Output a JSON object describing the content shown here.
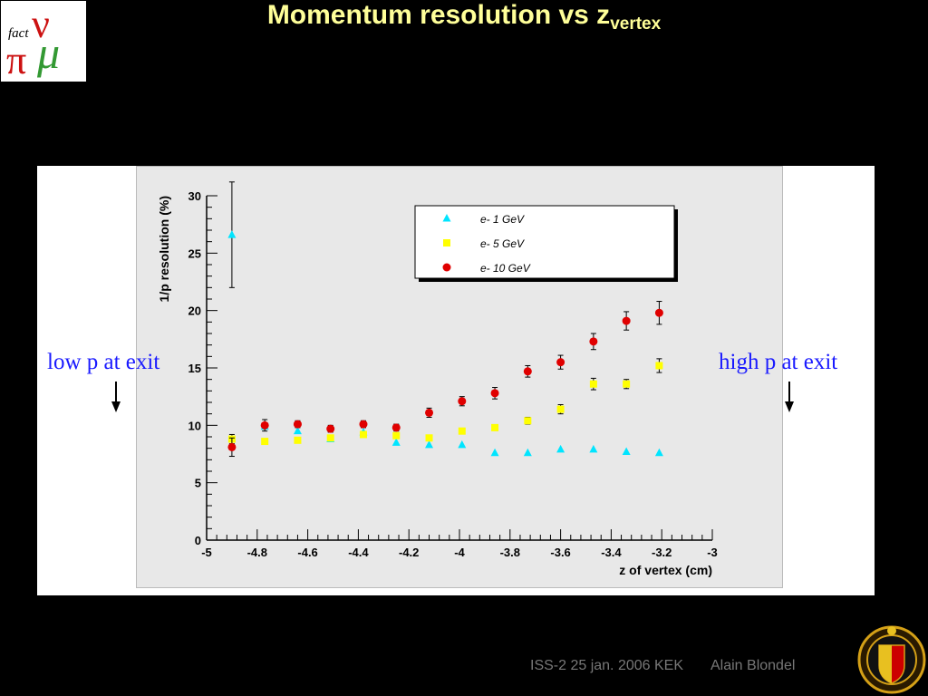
{
  "slide": {
    "title_main": "Momentum resolution vs z",
    "title_sub": "vertex",
    "left_note": "low p at exit",
    "right_note": "high p at exit",
    "footer_event": "ISS-2 25 jan. 2006 KEK",
    "footer_author": "Alain Blondel",
    "logo_text_top": "fact",
    "logo_text_nu": "ν",
    "logo_text_pi": "π",
    "logo_text_mu": "μ"
  },
  "chart_data": {
    "type": "scatter",
    "xlabel": "z of vertex (cm)",
    "ylabel": "1/p resolution (%)",
    "xlim": [
      -5,
      -3
    ],
    "ylim": [
      0,
      30
    ],
    "x_ticks": [
      "-5",
      "-4.8",
      "-4.6",
      "-4.4",
      "-4.2",
      "-4",
      "-3.8",
      "-3.6",
      "-3.4",
      "-3.2",
      "-3"
    ],
    "y_ticks": [
      "0",
      "5",
      "10",
      "15",
      "20",
      "25",
      "30"
    ],
    "legend_position": "top-right",
    "series": [
      {
        "name": "e- 1 GeV",
        "marker": "triangle",
        "color": "#00e5ff",
        "x": [
          -4.9,
          -4.77,
          -4.64,
          -4.51,
          -4.38,
          -4.25,
          -4.12,
          -3.99,
          -3.86,
          -3.73,
          -3.6,
          -3.47,
          -3.34,
          -3.21
        ],
        "y": [
          26.6,
          9.9,
          9.5,
          8.8,
          9.4,
          8.5,
          8.3,
          8.3,
          7.6,
          7.6,
          7.9,
          7.9,
          7.7,
          7.6
        ],
        "err": [
          4.6,
          0,
          0,
          0,
          0,
          0,
          0,
          0,
          0,
          0,
          0,
          0,
          0,
          0
        ]
      },
      {
        "name": "e- 5 GeV",
        "marker": "square",
        "color": "#ffff00",
        "x": [
          -4.9,
          -4.77,
          -4.64,
          -4.51,
          -4.38,
          -4.25,
          -4.12,
          -3.99,
          -3.86,
          -3.73,
          -3.6,
          -3.47,
          -3.34,
          -3.21
        ],
        "y": [
          8.8,
          8.6,
          8.7,
          8.9,
          9.2,
          9.1,
          8.9,
          9.5,
          9.8,
          10.4,
          11.4,
          13.6,
          13.6,
          15.2
        ],
        "err": [
          0.4,
          0,
          0,
          0,
          0,
          0,
          0,
          0,
          0,
          0.3,
          0.4,
          0.5,
          0.4,
          0.6
        ]
      },
      {
        "name": "e- 10 GeV",
        "marker": "circle",
        "color": "#e00000",
        "x": [
          -4.9,
          -4.77,
          -4.64,
          -4.51,
          -4.38,
          -4.25,
          -4.12,
          -3.99,
          -3.86,
          -3.73,
          -3.6,
          -3.47,
          -3.34,
          -3.21
        ],
        "y": [
          8.1,
          10.0,
          10.1,
          9.7,
          10.1,
          9.8,
          11.1,
          12.1,
          12.8,
          14.7,
          15.5,
          17.3,
          19.1,
          19.8
        ],
        "err": [
          0.8,
          0.5,
          0.3,
          0.3,
          0.3,
          0.3,
          0.4,
          0.4,
          0.5,
          0.5,
          0.6,
          0.7,
          0.8,
          1.0
        ]
      }
    ]
  }
}
